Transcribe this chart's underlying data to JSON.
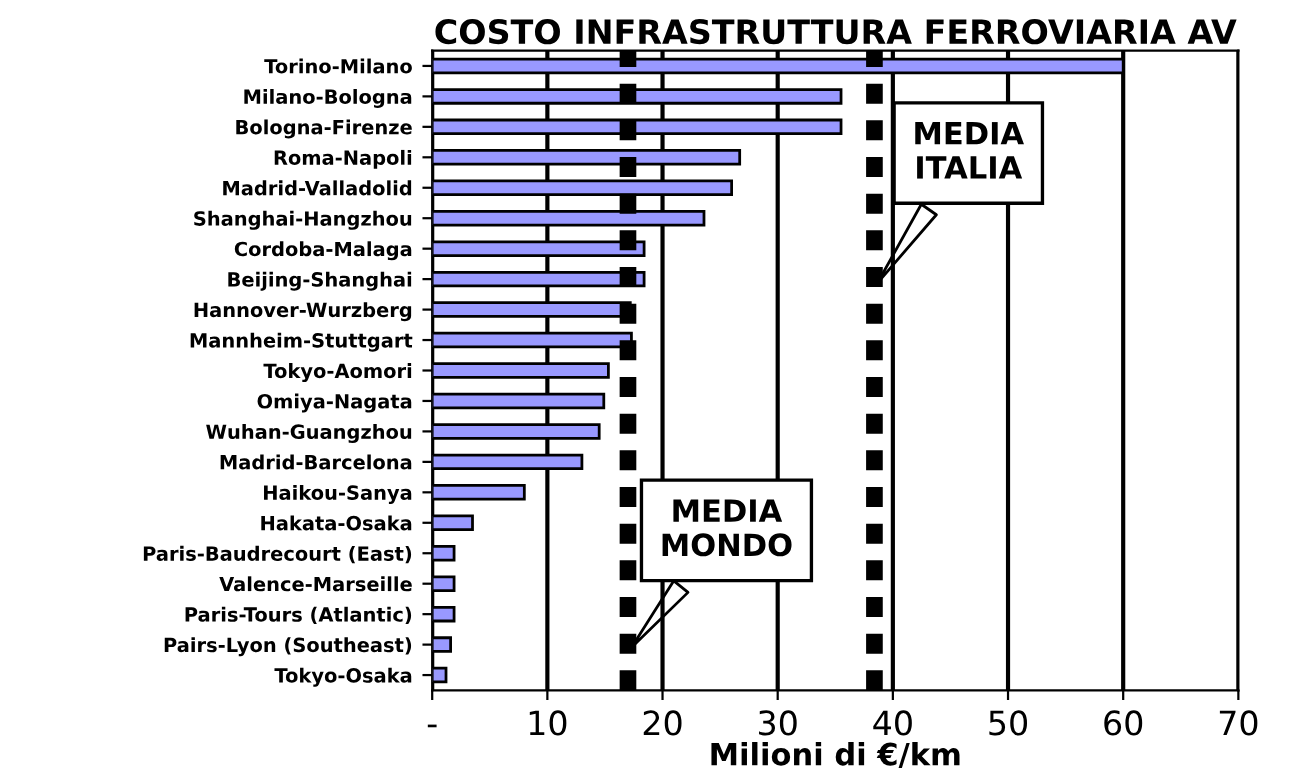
{
  "chart_data": {
    "type": "bar",
    "orientation": "horizontal",
    "title": "COSTO INFRASTRUTTURA FERROVIARIA AV",
    "xlabel": "Milioni di €/km",
    "categories": [
      "Torino-Milano",
      "Milano-Bologna",
      "Bologna-Firenze",
      "Roma-Napoli",
      "Madrid-Valladolid",
      "Shanghai-Hangzhou",
      "Cordoba-Malaga",
      "Beijing-Shanghai",
      "Hannover-Wurzberg",
      "Mannheim-Stuttgart",
      "Tokyo-Aomori",
      "Omiya-Nagata",
      "Wuhan-Guangzhou",
      "Madrid-Barcelona",
      "Haikou-Sanya",
      "Hakata-Osaka",
      "Paris-Baudrecourt (East)",
      "Valence-Marseille",
      "Paris-Tours (Atlantic)",
      "Pairs-Lyon (Southeast)",
      "Tokyo-Osaka"
    ],
    "values": [
      60,
      35.5,
      35.5,
      26.7,
      26,
      23.6,
      18.4,
      18.4,
      17.2,
      17.3,
      15.3,
      14.9,
      14.5,
      13,
      8,
      3.5,
      1.9,
      1.9,
      1.9,
      1.6,
      1.2
    ],
    "color": "#9999ff",
    "xlim": [
      0,
      70
    ],
    "xticks": [
      {
        "value": 0,
        "label": "-"
      },
      10,
      20,
      30,
      40,
      50,
      60,
      70
    ],
    "grid": "x",
    "ref_lines": [
      {
        "axis": "x",
        "value": 38.4,
        "label": "MEDIA\nITALIA",
        "color": "#000000",
        "line_style": "dashed"
      },
      {
        "axis": "x",
        "value": 17,
        "label": "MEDIA\nMONDO",
        "color": "#000000",
        "line_style": "dashed"
      }
    ]
  }
}
